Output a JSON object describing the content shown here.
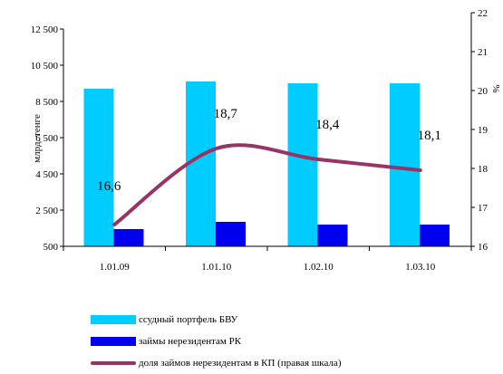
{
  "chart_data": {
    "type": "bar+line",
    "categories": [
      "1.01.09",
      "1.01.10",
      "1.02.10",
      "1.03.10"
    ],
    "series": [
      {
        "name": "ссудный портфель БВУ",
        "type": "bar",
        "axis": "left",
        "color": "#00ccff",
        "values": [
          9200,
          9600,
          9500,
          9500
        ]
      },
      {
        "name": "займы нерезидентам РК",
        "type": "bar",
        "axis": "left",
        "color": "#0000ee",
        "values": [
          1450,
          1850,
          1700,
          1700
        ]
      },
      {
        "name": "доля займов нерезидентам в КП (правая шкала)",
        "type": "line",
        "axis": "right",
        "color": "#993366",
        "values": [
          16.6,
          18.7,
          18.4,
          18.1
        ]
      }
    ],
    "data_labels": [
      "16,6",
      "18,7",
      "18,4",
      "18,1"
    ],
    "ylabel": "млрд. тенге",
    "ylabel_right": "%",
    "ylim": [
      500,
      12500
    ],
    "ylim_right": [
      16,
      22
    ],
    "yticks": [
      "500",
      "2 500",
      "4 500",
      "6 500",
      "8 500",
      "10 500",
      "12 500"
    ],
    "yticks_right": [
      "16",
      "17",
      "18",
      "19",
      "20",
      "21",
      "22"
    ],
    "grid": false,
    "legend_position": "bottom"
  }
}
